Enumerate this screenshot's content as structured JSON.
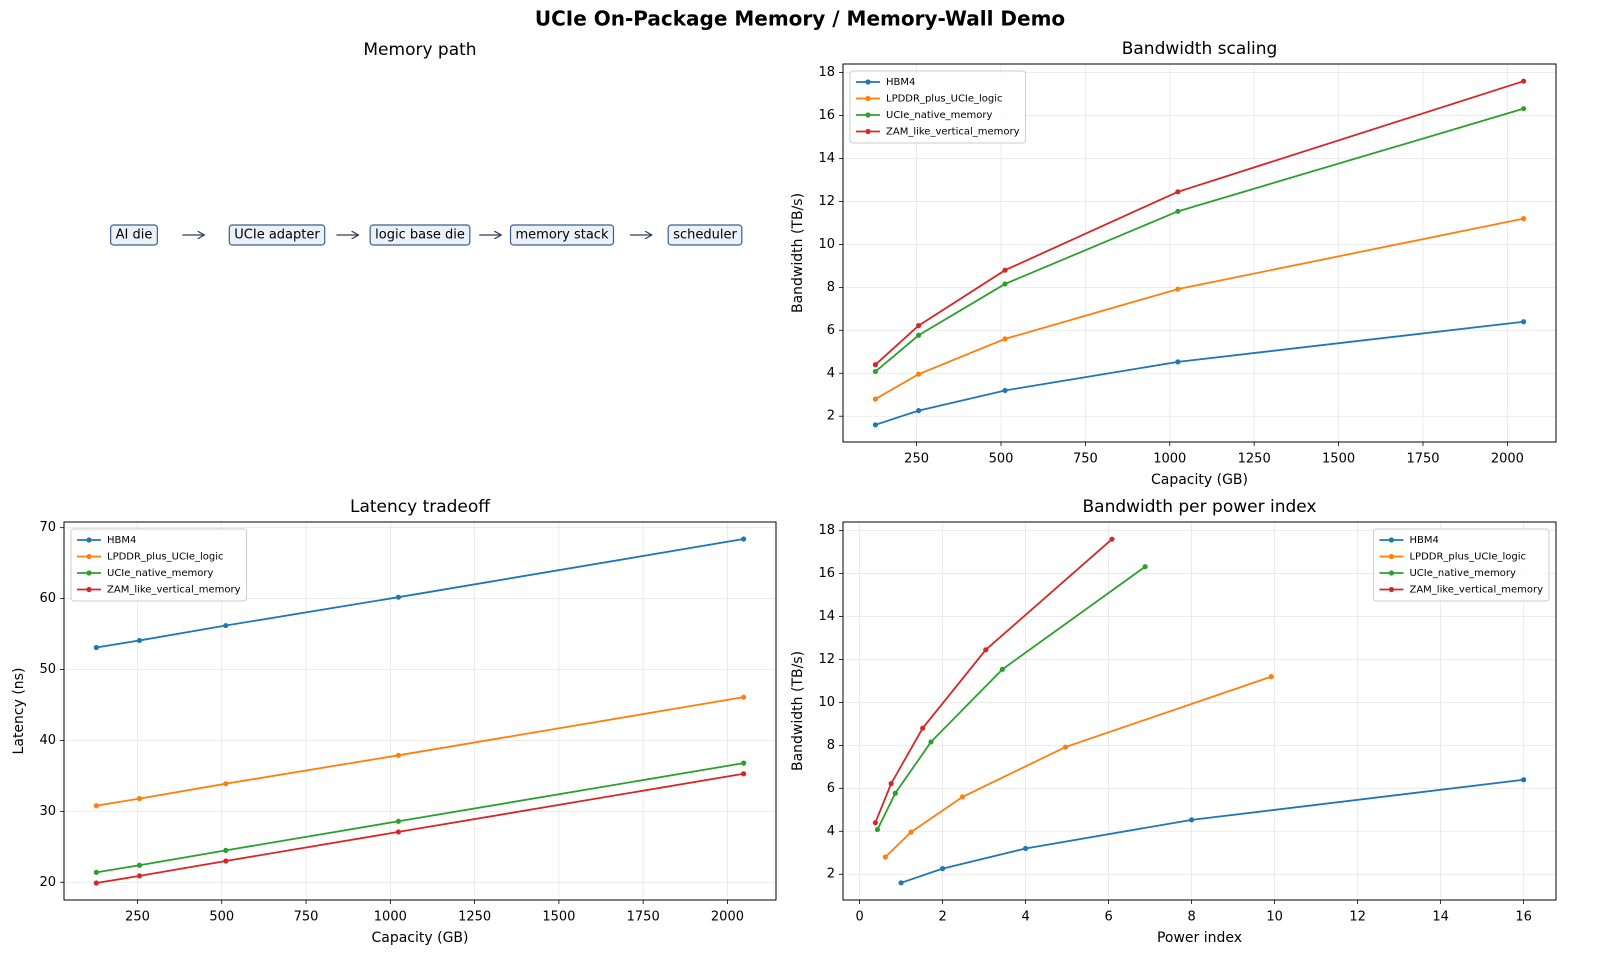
{
  "title": "UCIe On-Package Memory / Memory-Wall Demo",
  "diagram": {
    "title": "Memory path",
    "nodes": [
      "AI die",
      "UCIe adapter",
      "logic base die",
      "memory stack",
      "scheduler"
    ]
  },
  "chart_data": [
    {
      "type": "line",
      "title": "Bandwidth scaling",
      "xlabel": "Capacity (GB)",
      "ylabel": "Bandwidth (TB/s)",
      "x": [
        128,
        256,
        512,
        1024,
        2048
      ],
      "xlim": [
        32,
        2144
      ],
      "xticks": [
        250,
        500,
        750,
        1000,
        1250,
        1500,
        1750,
        2000
      ],
      "ylim": [
        0.8,
        18.4
      ],
      "yticks": [
        2,
        4,
        6,
        8,
        10,
        12,
        14,
        16,
        18
      ],
      "grid": true,
      "legend": "upper left",
      "series": [
        {
          "name": "HBM4",
          "color": "#1f77b4",
          "values": [
            1.6,
            2.26,
            3.2,
            4.53,
            6.4
          ]
        },
        {
          "name": "LPDDR_plus_UCIe_logic",
          "color": "#ff7f0e",
          "values": [
            2.8,
            3.96,
            5.6,
            7.92,
            11.2
          ]
        },
        {
          "name": "UCIe_native_memory",
          "color": "#2ca02c",
          "values": [
            4.08,
            5.77,
            8.16,
            11.54,
            16.32
          ]
        },
        {
          "name": "ZAM_like_vertical_memory",
          "color": "#d62728",
          "values": [
            4.4,
            6.22,
            8.8,
            12.45,
            17.6
          ]
        }
      ]
    },
    {
      "type": "line",
      "title": "Latency tradeoff",
      "xlabel": "Capacity (GB)",
      "ylabel": "Latency (ns)",
      "x": [
        128,
        256,
        512,
        1024,
        2048
      ],
      "xlim": [
        32,
        2144
      ],
      "xticks": [
        250,
        500,
        750,
        1000,
        1250,
        1500,
        1750,
        2000
      ],
      "ylim": [
        17.5,
        70.8
      ],
      "yticks": [
        20,
        30,
        40,
        50,
        60,
        70
      ],
      "grid": true,
      "legend": "upper left",
      "series": [
        {
          "name": "HBM4",
          "color": "#1f77b4",
          "values": [
            53.1,
            54.1,
            56.2,
            60.2,
            68.4
          ]
        },
        {
          "name": "LPDDR_plus_UCIe_logic",
          "color": "#ff7f0e",
          "values": [
            30.8,
            31.8,
            33.9,
            37.9,
            46.1
          ]
        },
        {
          "name": "UCIe_native_memory",
          "color": "#2ca02c",
          "values": [
            21.4,
            22.4,
            24.5,
            28.6,
            36.8
          ]
        },
        {
          "name": "ZAM_like_vertical_memory",
          "color": "#d62728",
          "values": [
            19.9,
            20.9,
            23.0,
            27.1,
            35.3
          ]
        }
      ]
    },
    {
      "type": "line",
      "title": "Bandwidth per power index",
      "xlabel": "Power index",
      "ylabel": "Bandwidth (TB/s)",
      "xlim": [
        -0.4,
        16.78
      ],
      "xticks": [
        0,
        2,
        4,
        6,
        8,
        10,
        12,
        14,
        16
      ],
      "ylim": [
        0.8,
        18.4
      ],
      "yticks": [
        2,
        4,
        6,
        8,
        10,
        12,
        14,
        16,
        18
      ],
      "grid": true,
      "legend": "upper right",
      "series": [
        {
          "name": "HBM4",
          "color": "#1f77b4",
          "x": [
            1,
            2,
            4,
            8,
            16
          ],
          "values": [
            1.6,
            2.26,
            3.2,
            4.53,
            6.4
          ]
        },
        {
          "name": "LPDDR_plus_UCIe_logic",
          "color": "#ff7f0e",
          "x": [
            0.62,
            1.24,
            2.48,
            4.96,
            9.92
          ],
          "values": [
            2.8,
            3.96,
            5.6,
            7.92,
            11.2
          ]
        },
        {
          "name": "UCIe_native_memory",
          "color": "#2ca02c",
          "x": [
            0.43,
            0.86,
            1.72,
            3.44,
            6.88
          ],
          "values": [
            4.08,
            5.77,
            8.16,
            11.54,
            16.32
          ]
        },
        {
          "name": "ZAM_like_vertical_memory",
          "color": "#d62728",
          "x": [
            0.38,
            0.76,
            1.52,
            3.04,
            6.08
          ],
          "values": [
            4.4,
            6.22,
            8.8,
            12.45,
            17.6
          ]
        }
      ]
    }
  ]
}
